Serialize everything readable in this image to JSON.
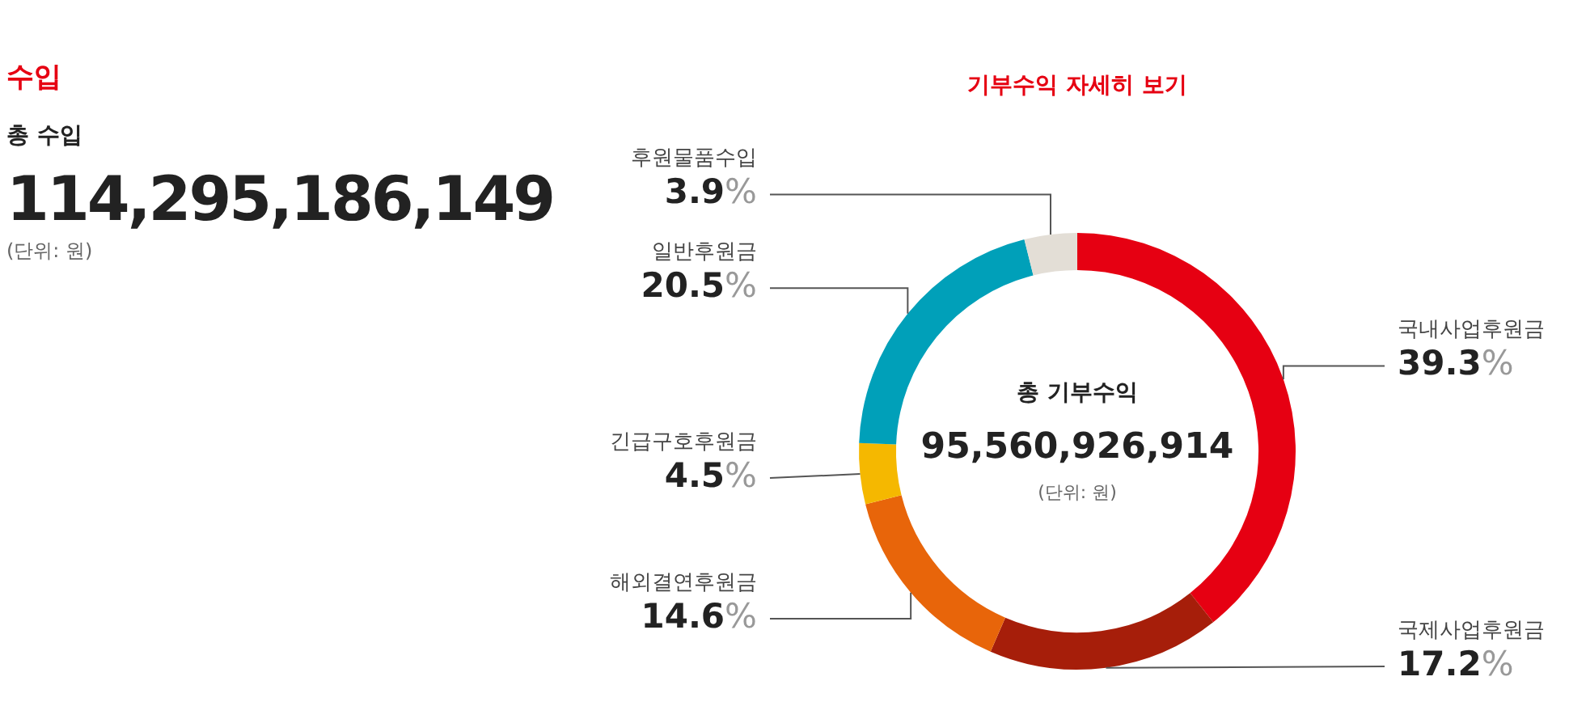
{
  "chart_data": [
    {
      "type": "other",
      "title": "수입",
      "subtitle": "총 수입",
      "annotations": [
        "114,295,186,149",
        "(단위: 원)"
      ]
    },
    {
      "type": "donut",
      "title": "기부수익 자세히 보기",
      "categories": [
        "국내사업후원금",
        "국제사업후원금",
        "해외결연후원금",
        "긴급구호후원금",
        "일반후원금",
        "후원물품수입"
      ],
      "values": [
        39.3,
        17.2,
        14.6,
        4.5,
        20.5,
        3.9
      ],
      "colors": [
        "#e60012",
        "#a61e0a",
        "#e8650a",
        "#f5b800",
        "#00a0b9",
        "#e3ded6"
      ],
      "value_labels": [
        "39.3%",
        "17.2%",
        "14.6%",
        "4.5%",
        "20.5%",
        "3.9%"
      ],
      "annotations": [
        "총 기부수익",
        "95,560,926,914",
        "(단위: 원)"
      ],
      "legend": false
    }
  ]
}
